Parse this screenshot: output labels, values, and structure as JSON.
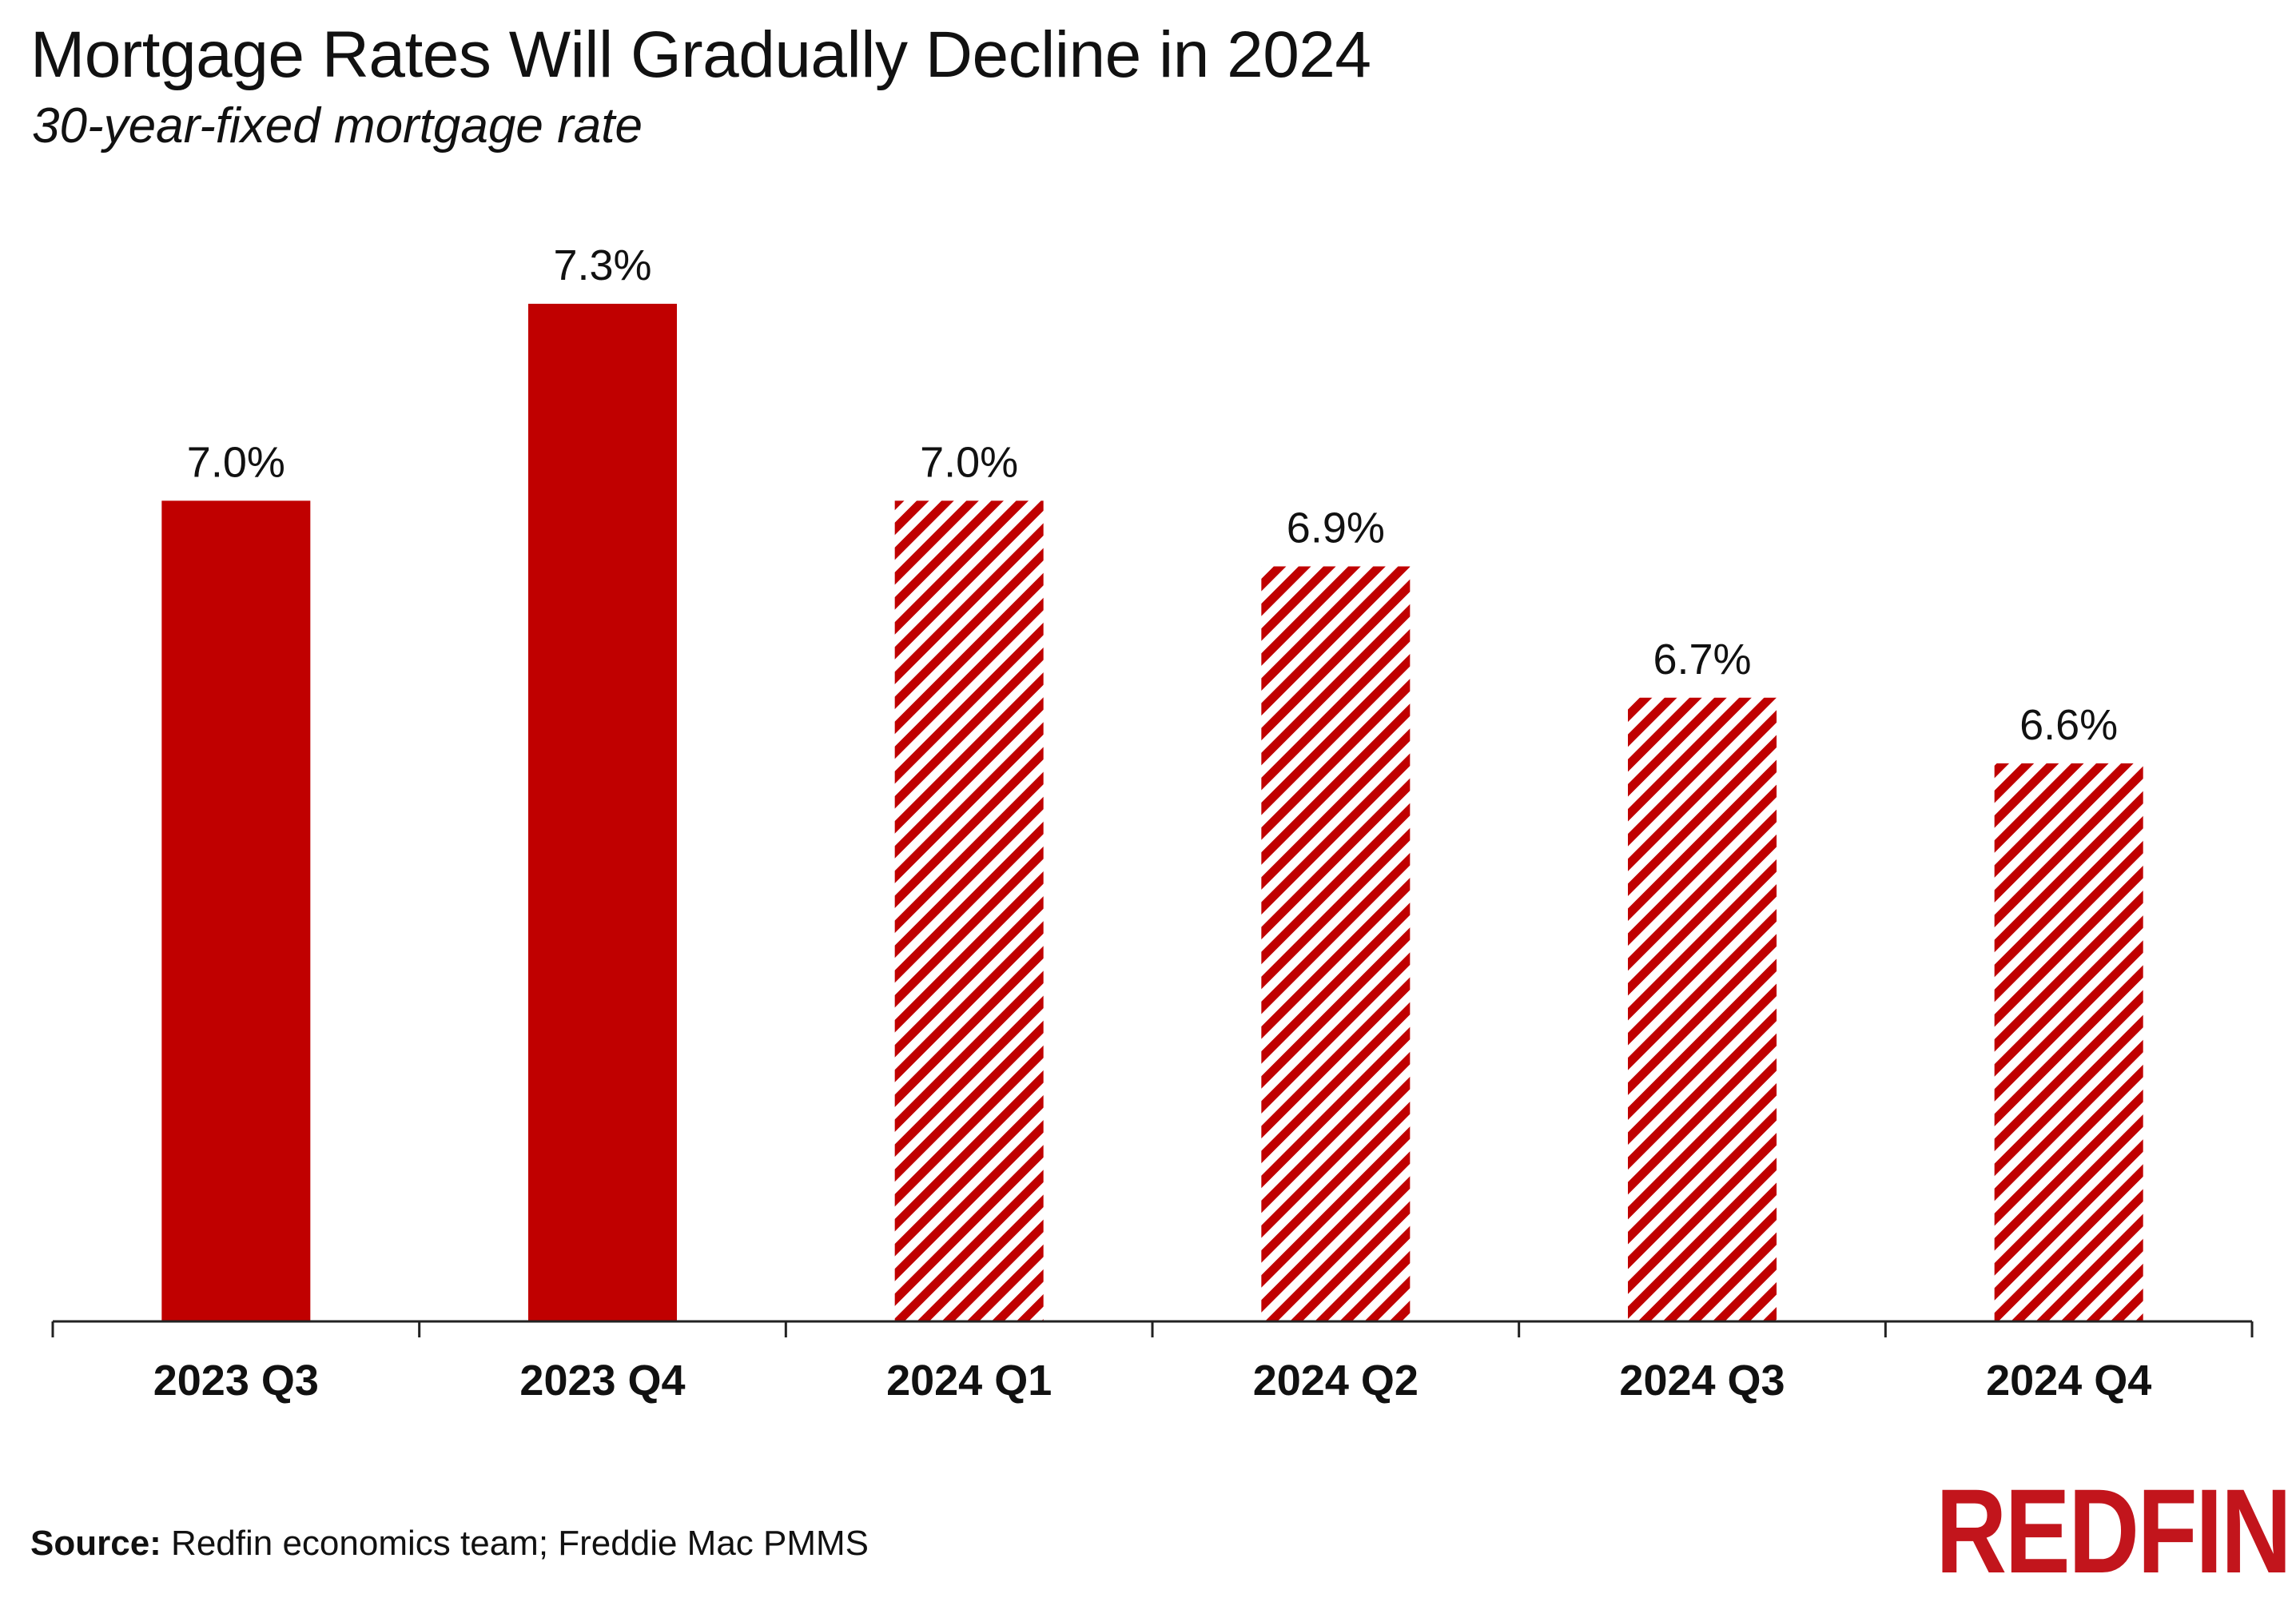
{
  "title": "Mortgage Rates Will Gradually Decline in 2024",
  "subtitle": "30-year-fixed mortgage rate",
  "source": {
    "label": "Source:",
    "text": " Redfin economics team; Freddie Mac PMMS"
  },
  "logo_text": "REDFIN",
  "colors": {
    "bar": "#c00000",
    "hatch_bg": "#ffffff",
    "axis": "#222222",
    "logo": "#c2151c"
  },
  "chart_data": {
    "type": "bar",
    "categories": [
      "2023 Q3",
      "2023 Q4",
      "2024 Q1",
      "2024 Q2",
      "2024 Q3",
      "2024 Q4"
    ],
    "values": [
      7.0,
      7.3,
      7.0,
      6.9,
      6.7,
      6.6
    ],
    "value_labels": [
      "7.0%",
      "7.3%",
      "7.0%",
      "6.9%",
      "6.7%",
      "6.6%"
    ],
    "bar_styles": [
      "solid",
      "solid",
      "hatched",
      "hatched",
      "hatched",
      "hatched"
    ],
    "title": "Mortgage Rates Will Gradually Decline in 2024",
    "subtitle": "30-year-fixed mortgage rate",
    "xlabel": "",
    "ylabel": "",
    "ylim": [
      5.75,
      7.3
    ],
    "grid": false,
    "legend": "none"
  }
}
